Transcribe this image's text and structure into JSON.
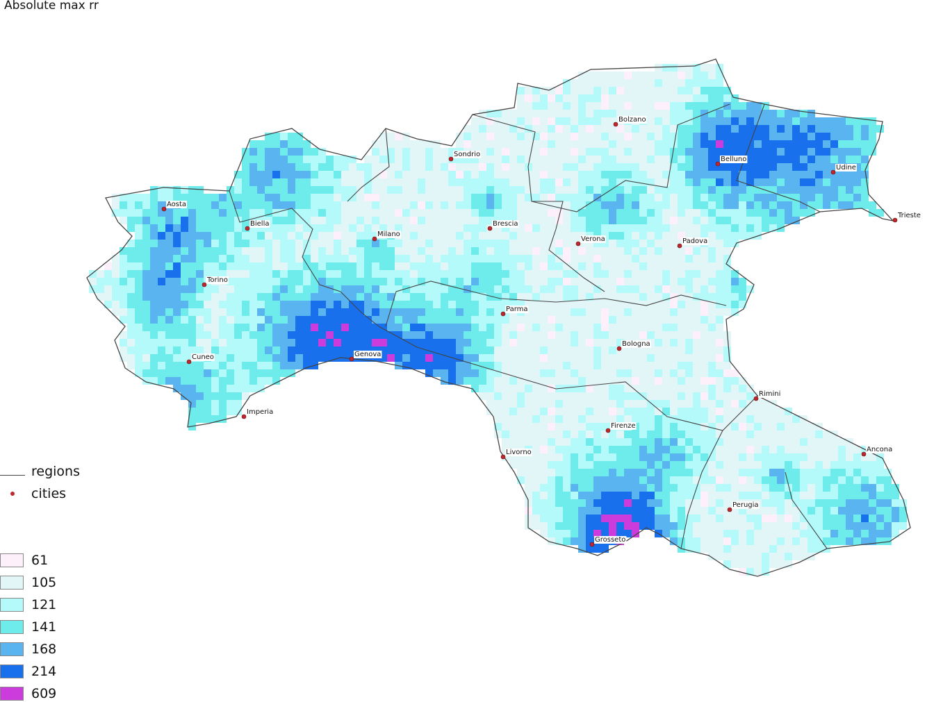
{
  "title": "Absolute max rr",
  "legend": {
    "layers": [
      {
        "label": "regions",
        "symbol": "line",
        "color": "#444444"
      },
      {
        "label": "cities",
        "symbol": "dot",
        "color": "#c0262d"
      }
    ],
    "classes": [
      {
        "label": "61",
        "color": "#fdf0fa"
      },
      {
        "label": "105",
        "color": "#e2f6f8"
      },
      {
        "label": "121",
        "color": "#b4fafa"
      },
      {
        "label": "141",
        "color": "#6eecec"
      },
      {
        "label": "168",
        "color": "#5ab4f0"
      },
      {
        "label": "214",
        "color": "#1870ec"
      },
      {
        "label": "609",
        "color": "#cc3cdc"
      }
    ]
  },
  "cities": [
    "Aosta",
    "Biella",
    "Milano",
    "Sondrio",
    "Brescia",
    "Bolzano",
    "Belluno",
    "Udine",
    "Trieste",
    "Verona",
    "Padova",
    "Torino",
    "Parma",
    "Bologna",
    "Cuneo",
    "Genova",
    "Imperia",
    "Rimini",
    "Firenze",
    "Livorno",
    "Ancona",
    "Perugia",
    "Grosseto"
  ]
}
